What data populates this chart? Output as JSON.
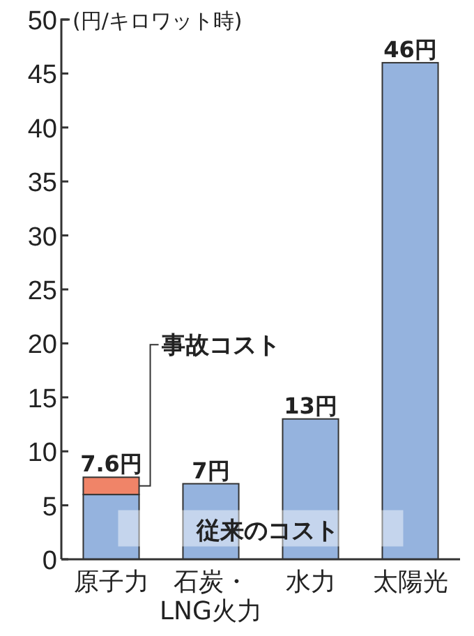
{
  "chart_data": {
    "type": "bar",
    "stacked": true,
    "ylabel": "(円/キロワット時)",
    "categories": [
      "原子力",
      "石炭・\nLNG火力",
      "水力",
      "太陽光"
    ],
    "series": [
      {
        "name": "従来のコスト",
        "color": "#95b3de",
        "values": [
          6,
          7,
          13,
          46
        ]
      },
      {
        "name": "事故コスト",
        "color": "#f08468",
        "values": [
          1.6,
          null,
          null,
          null
        ]
      }
    ],
    "totals": [
      "7.6円",
      "7円",
      "13円",
      "46円"
    ],
    "ylim": [
      0,
      50
    ],
    "yticks": [
      0,
      5,
      10,
      15,
      20,
      25,
      30,
      35,
      40,
      45,
      50
    ],
    "legend": false,
    "grid": false
  }
}
